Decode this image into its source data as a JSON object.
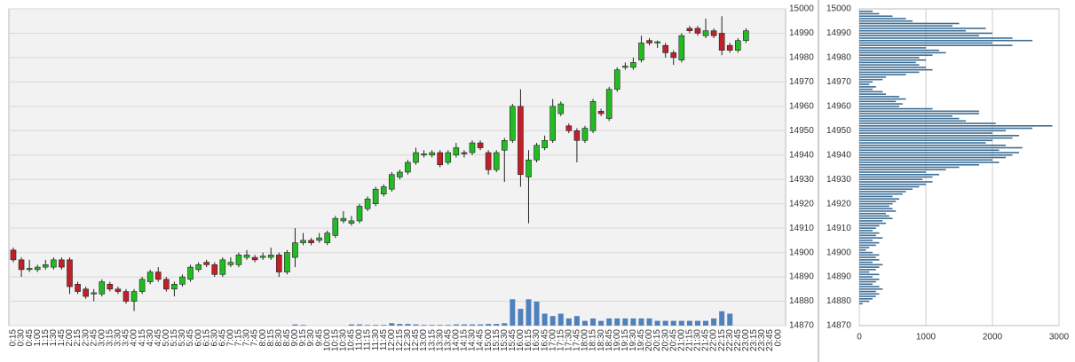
{
  "chart_data": [
    {
      "type": "candlestick",
      "categories": [
        "0:15",
        "0:30",
        "0:45",
        "1:00",
        "1:15",
        "1:30",
        "1:45",
        "2:00",
        "2:15",
        "2:30",
        "2:45",
        "3:00",
        "3:15",
        "3:30",
        "3:45",
        "4:00",
        "4:15",
        "4:30",
        "4:45",
        "5:00",
        "5:15",
        "5:30",
        "5:45",
        "6:00",
        "6:15",
        "6:30",
        "6:45",
        "7:00",
        "7:15",
        "7:30",
        "7:45",
        "8:00",
        "8:15",
        "8:30",
        "8:45",
        "9:00",
        "9:15",
        "9:30",
        "9:45",
        "10:00",
        "10:15",
        "10:30",
        "10:45",
        "11:00",
        "11:15",
        "11:30",
        "11:45",
        "12:00",
        "12:15",
        "12:30",
        "12:45",
        "13:00",
        "13:15",
        "13:30",
        "13:45",
        "14:00",
        "14:15",
        "14:30",
        "14:45",
        "15:00",
        "15:15",
        "15:30",
        "15:45",
        "16:00",
        "16:15",
        "16:30",
        "16:45",
        "17:00",
        "17:15",
        "17:30",
        "17:45",
        "18:00",
        "18:15",
        "18:30",
        "18:45",
        "19:00",
        "19:15",
        "19:30",
        "19:45",
        "20:00",
        "20:15",
        "20:30",
        "20:45",
        "21:00",
        "21:15",
        "21:30",
        "21:45",
        "22:00",
        "22:15",
        "22:30",
        "22:45",
        "23:00",
        "23:15",
        "23:30",
        "23:45",
        "0:00"
      ],
      "open": [
        14901,
        14897,
        14893,
        14893,
        14894,
        14894,
        14897,
        14897,
        14887,
        14885,
        14883,
        14883,
        14887,
        14885,
        14884,
        14880,
        14884,
        14888,
        14892,
        14889,
        14885,
        14887,
        14889,
        14893,
        14896,
        14895,
        14891,
        14895,
        14895,
        14898,
        14898,
        14898,
        14898,
        14899,
        14892,
        14898,
        14904,
        14905,
        14905,
        14904,
        14907,
        14913,
        14912,
        14913,
        14918,
        14920,
        14924,
        14926,
        14931,
        14933,
        14937,
        14940,
        14940,
        14941,
        14937,
        14940,
        14941,
        14941,
        14945,
        14941,
        14934,
        14942,
        14946,
        14960,
        14931,
        14938,
        14943,
        14946,
        14957,
        14952,
        14950,
        14946,
        14950,
        14958,
        14955,
        14967,
        14976,
        14976,
        14979,
        14987,
        14986,
        14985,
        14982,
        14979,
        14992,
        14992,
        14989,
        14991,
        14990,
        14985,
        14983,
        14987,
        null,
        null,
        null,
        null
      ],
      "high": [
        14902,
        14898,
        14897,
        14895,
        14897,
        14898,
        14898,
        14898,
        14888,
        14886,
        14885,
        14889,
        14888,
        14886,
        14885,
        14885,
        14890,
        14893,
        14894,
        14890,
        14888,
        14891,
        14895,
        14896,
        14897,
        14896,
        14898,
        14898,
        14900,
        14901,
        14899,
        14900,
        14902,
        14900,
        14901,
        14910,
        14908,
        14906,
        14908,
        14909,
        14915,
        14917,
        14915,
        14920,
        14923,
        14927,
        14928,
        14933,
        14934,
        14938,
        14943,
        14942,
        14942,
        14942,
        14942,
        14945,
        14942,
        14946,
        14946,
        14942,
        14942,
        14947,
        14961,
        14967,
        14942,
        14945,
        14948,
        14963,
        14962,
        14953,
        14951,
        14952,
        14963,
        14959,
        14968,
        14976,
        14978,
        14980,
        14989,
        14988,
        14987,
        14986,
        14983,
        14990,
        14993,
        14993,
        14996,
        14992,
        14997,
        14986,
        14988,
        14992,
        null,
        null,
        null,
        null
      ],
      "low": [
        14896,
        14890,
        14892,
        14892,
        14893,
        14893,
        14893,
        14883,
        14883,
        14881,
        14880,
        14882,
        14884,
        14883,
        14879,
        14876,
        14883,
        14887,
        14888,
        14884,
        14882,
        14886,
        14888,
        14892,
        14894,
        14890,
        14890,
        14894,
        14894,
        14897,
        14896,
        14897,
        14897,
        14890,
        14891,
        14894,
        14903,
        14903,
        14904,
        14903,
        14906,
        14912,
        14911,
        14912,
        14917,
        14919,
        14923,
        14925,
        14930,
        14932,
        14936,
        14939,
        14939,
        14935,
        14936,
        14939,
        14939,
        14940,
        14942,
        14932,
        14933,
        14929,
        14945,
        14927,
        14912,
        14937,
        14942,
        14945,
        14956,
        14949,
        14937,
        14945,
        14949,
        14956,
        14954,
        14966,
        14975,
        14975,
        14978,
        14985,
        14984,
        14980,
        14977,
        14978,
        14990,
        14989,
        14988,
        14988,
        14981,
        14982,
        14982,
        14986,
        null,
        null,
        null,
        null
      ],
      "close": [
        14897,
        14893,
        14893.5,
        14894,
        14895,
        14897,
        14894,
        14886,
        14884,
        14882,
        14883.5,
        14888,
        14885,
        14884,
        14880,
        14884,
        14889,
        14892,
        14889,
        14885,
        14887,
        14890,
        14894,
        14895,
        14895,
        14891,
        14897,
        14896,
        14899,
        14899,
        14897,
        14898.5,
        14899,
        14892,
        14900,
        14904,
        14905,
        14904,
        14906,
        14908,
        14914,
        14914,
        14913,
        14919,
        14922,
        14926,
        14927,
        14932,
        14933,
        14937,
        14941,
        14940.5,
        14941,
        14936,
        14941,
        14943,
        14940.5,
        14945,
        14943,
        14934,
        14941,
        14946,
        14960,
        14932,
        14938,
        14944,
        14946,
        14960,
        14961,
        14950,
        14946,
        14951,
        14962,
        14957,
        14967,
        14975,
        14976.5,
        14978,
        14986,
        14986,
        14986.5,
        14982,
        14980,
        14989,
        14991,
        14990,
        14991,
        14989,
        14983,
        14983,
        14987,
        14991,
        null,
        null,
        null,
        null
      ],
      "volume": [
        0,
        0,
        0,
        0,
        0,
        0,
        0,
        0,
        0,
        0,
        0,
        0,
        0,
        0,
        0,
        0,
        0,
        0,
        0,
        0,
        0,
        0,
        0,
        0,
        0,
        0,
        0,
        0,
        0,
        0,
        0,
        0,
        0,
        0,
        0,
        0.5,
        0.3,
        0,
        0,
        0,
        0,
        0,
        0.5,
        0.5,
        0.3,
        0.3,
        0.3,
        1,
        0.7,
        0.7,
        0.5,
        0.3,
        0.3,
        0.3,
        0.3,
        0.5,
        0.5,
        0.5,
        0.5,
        0.7,
        0.7,
        1,
        11,
        7,
        11,
        10,
        5,
        4,
        5,
        3,
        4,
        2,
        3,
        2,
        3,
        3,
        3,
        3,
        3,
        3,
        2,
        2,
        2,
        2,
        2,
        2,
        2,
        3,
        6,
        5,
        null,
        null,
        null,
        null,
        null,
        null
      ],
      "up_color": "#22bb22",
      "down_color": "#c0202a",
      "volume_color": "#4f81bd",
      "ylim": [
        14870,
        15000
      ],
      "yticks": [
        14870,
        14880,
        14890,
        14900,
        14910,
        14920,
        14930,
        14940,
        14950,
        14960,
        14970,
        14980,
        14990,
        15000
      ],
      "grid": true
    },
    {
      "type": "hbar",
      "y": [
        14879,
        14880,
        14881,
        14882,
        14883,
        14884,
        14885,
        14886,
        14887,
        14888,
        14889,
        14890,
        14891,
        14892,
        14893,
        14894,
        14895,
        14896,
        14897,
        14898,
        14899,
        14900,
        14901,
        14902,
        14903,
        14904,
        14905,
        14906,
        14907,
        14908,
        14909,
        14910,
        14911,
        14912,
        14913,
        14914,
        14915,
        14916,
        14917,
        14918,
        14919,
        14920,
        14921,
        14922,
        14923,
        14924,
        14925,
        14926,
        14927,
        14928,
        14929,
        14930,
        14931,
        14932,
        14933,
        14934,
        14935,
        14936,
        14937,
        14938,
        14939,
        14940,
        14941,
        14942,
        14943,
        14944,
        14945,
        14946,
        14947,
        14948,
        14949,
        14950,
        14951,
        14952,
        14953,
        14954,
        14955,
        14956,
        14957,
        14958,
        14959,
        14960,
        14961,
        14962,
        14963,
        14964,
        14965,
        14966,
        14967,
        14968,
        14969,
        14970,
        14971,
        14972,
        14973,
        14974,
        14975,
        14976,
        14977,
        14978,
        14979,
        14980,
        14981,
        14982,
        14983,
        14984,
        14985,
        14986,
        14987,
        14988,
        14989,
        14990,
        14991,
        14992,
        14993,
        14994,
        14995,
        14996,
        14997,
        14998,
        14999
      ],
      "values": [
        50,
        150,
        200,
        250,
        300,
        250,
        350,
        300,
        200,
        250,
        300,
        200,
        300,
        150,
        250,
        300,
        350,
        200,
        300,
        250,
        300,
        200,
        100,
        150,
        250,
        300,
        200,
        350,
        250,
        300,
        200,
        250,
        300,
        400,
        350,
        500,
        450,
        400,
        550,
        500,
        450,
        500,
        550,
        600,
        500,
        650,
        700,
        800,
        900,
        1000,
        1100,
        950,
        1100,
        1200,
        1000,
        1300,
        1500,
        1800,
        2100,
        2000,
        2200,
        2300,
        2400,
        2100,
        2450,
        2200,
        1900,
        2000,
        2300,
        2400,
        2000,
        2200,
        2600,
        2900,
        2050,
        1600,
        1500,
        1400,
        1800,
        1800,
        1100,
        600,
        650,
        550,
        700,
        600,
        400,
        350,
        200,
        250,
        150,
        200,
        350,
        400,
        700,
        900,
        1100,
        1000,
        900,
        850,
        1000,
        900,
        1100,
        1300,
        1200,
        1000,
        2300,
        2000,
        2600,
        2300,
        1800,
        2000,
        1600,
        1900,
        1400,
        1500,
        800,
        700,
        500,
        300,
        200
      ],
      "color": "#3d6e96",
      "xlim": [
        0,
        3000
      ],
      "xticks": [
        0,
        1000,
        2000,
        3000
      ],
      "ylim": [
        14870,
        15000
      ],
      "grid": true
    }
  ]
}
